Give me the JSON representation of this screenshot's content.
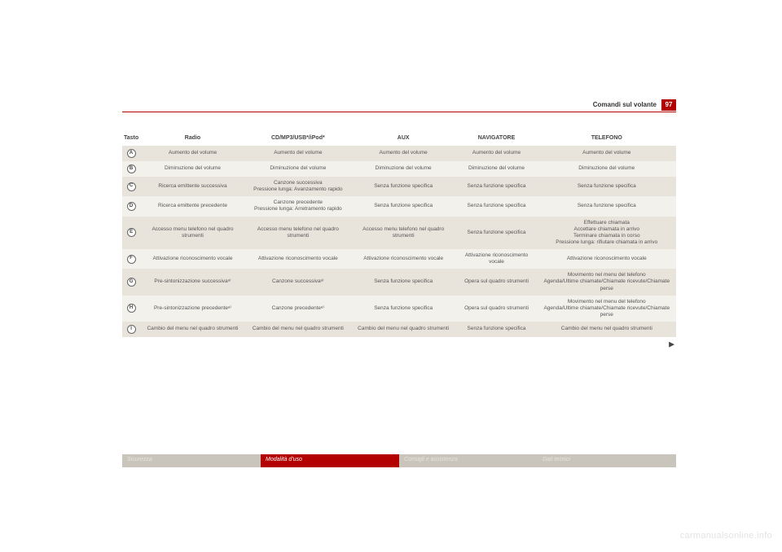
{
  "header": {
    "section": "Comandi sul volante",
    "page": "97"
  },
  "table": {
    "headers": [
      "Tasto",
      "Radio",
      "CD/MP3/USB*/iPod*",
      "AUX",
      "NAVIGATORE",
      "TELEFONO"
    ],
    "keys": [
      "A",
      "B",
      "C",
      "D",
      "E",
      "F",
      "G",
      "H",
      "I"
    ],
    "rows": [
      {
        "radio": "Aumento del volume",
        "cd": "Aumento del volume",
        "aux": "Aumento del volume",
        "nav": "Aumento del volume",
        "tel": "Aumento del volume"
      },
      {
        "radio": "Diminuzione del volume",
        "cd": "Diminuzione del volume",
        "aux": "Diminuzione del volume",
        "nav": "Diminuzione del volume",
        "tel": "Diminuzione del volume"
      },
      {
        "radio": "Ricerca emittente successiva",
        "cd": "Canzone successiva\nPressione lunga: Avanzamento rapido",
        "aux": "Senza funzione specifica",
        "nav": "Senza funzione specifica",
        "tel": "Senza funzione specifica"
      },
      {
        "radio": "Ricerca emittente precedente",
        "cd": "Canzone precedente\nPressione lunga: Arretramento rapido",
        "aux": "Senza funzione specifica",
        "nav": "Senza funzione specifica",
        "tel": "Senza funzione specifica"
      },
      {
        "radio": "Accesso menu telefono nel quadro strumenti",
        "cd": "Accesso menu telefono nel quadro strumenti",
        "aux": "Accesso menu telefono nel quadro strumenti",
        "nav": "Senza funzione specifica",
        "tel": "Effettuare chiamata\nAccettare chiamata in arrivo\nTerminare chiamata in corso\nPressione lunga: rifiutare chiamata in arrivo"
      },
      {
        "radio": "Attivazione riconoscimento vocale",
        "cd": "Attivazione riconoscimento vocale",
        "aux": "Attivazione riconoscimento vocale",
        "nav": "Attivazione riconoscimento vocale",
        "tel": "Attivazione riconoscimento vocale"
      },
      {
        "radio": "Pre-sintonizzazione successivaᵃ⁾",
        "cd": "Canzone successivaᵃ⁾",
        "aux": "Senza funzione specifica",
        "nav": "Opera sul quadro strumenti",
        "tel": "Movimento nel menu del telefono\nAgenda/Ultime chiamate/Chiamate ricevute/Chiamate perse"
      },
      {
        "radio": "Pre-sintonizzazione precedenteᵃ⁾",
        "cd": "Canzone precedenteᵃ⁾",
        "aux": "Senza funzione specifica",
        "nav": "Opera sul quadro strumenti",
        "tel": "Movimento nel menu del telefono\nAgenda/Ultime chiamate/Chiamate ricevute/Chiamate perse"
      },
      {
        "radio": "Cambio del menu nel quadro strumenti",
        "cd": "Cambio del menu nel quadro strumenti",
        "aux": "Cambio del menu nel quadro strumenti",
        "nav": "Senza funzione specifica",
        "tel": "Cambio del menu nel quadro strumenti"
      }
    ]
  },
  "footer": {
    "segments": [
      "Sicurezza",
      "Modalità d'uso",
      "Consigli e assistenza",
      "Dati tecnici"
    ],
    "active_index": 1
  },
  "watermark": "carmanualsonline.info"
}
